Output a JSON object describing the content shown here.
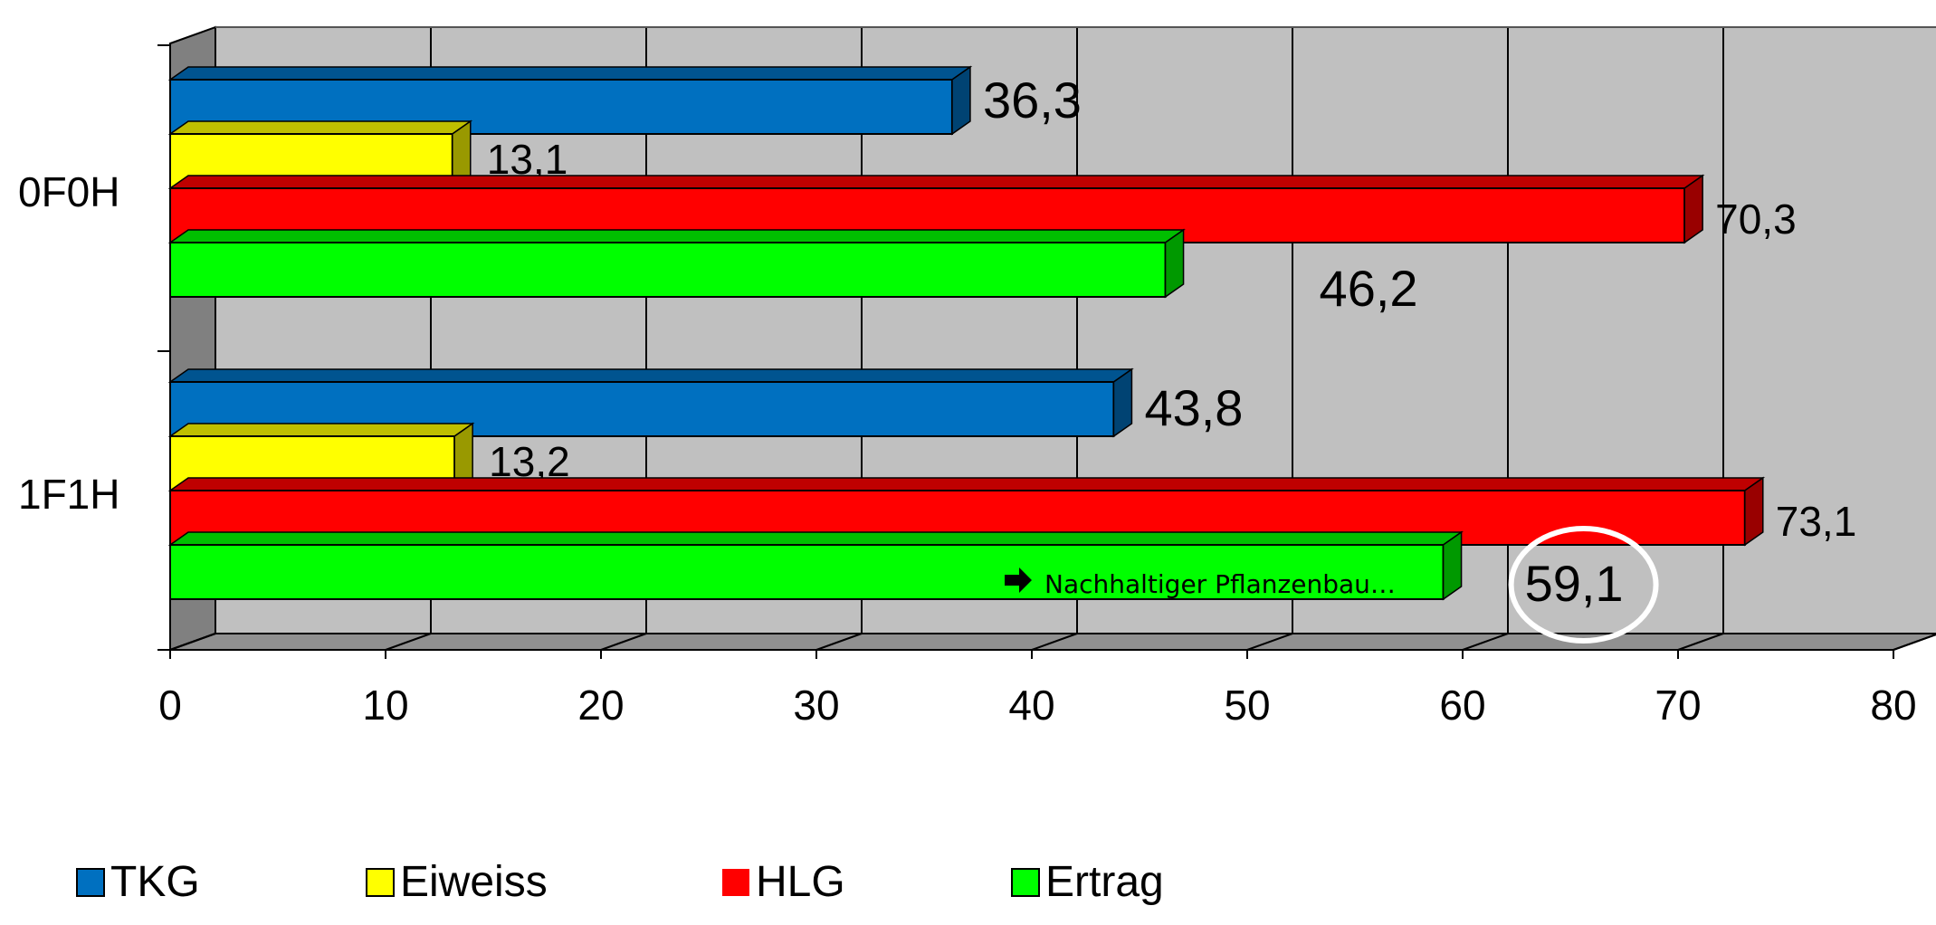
{
  "chart_data": {
    "type": "bar",
    "orientation": "horizontal",
    "style": "3d",
    "categories": [
      "0F0H",
      "1F1H"
    ],
    "series": [
      {
        "name": "TKG",
        "color": "#0070C0",
        "values": [
          36.3,
          43.8
        ],
        "labels": [
          "36,3",
          "43,8"
        ]
      },
      {
        "name": "Eiweiss",
        "color": "#FFFF00",
        "values": [
          13.1,
          13.2
        ],
        "labels": [
          "13,1",
          "13,2"
        ]
      },
      {
        "name": "HLG",
        "color": "#FF0000",
        "values": [
          70.3,
          73.1
        ],
        "labels": [
          "70,3",
          "73,1"
        ]
      },
      {
        "name": "Ertrag",
        "color": "#00FF00",
        "values": [
          46.2,
          59.1
        ],
        "labels": [
          "46,2",
          "59,1"
        ]
      }
    ],
    "xlim": [
      0,
      80
    ],
    "xticks": [
      "0",
      "10",
      "20",
      "30",
      "40",
      "50",
      "60",
      "70",
      "80"
    ],
    "grid": true,
    "legend_position": "bottom",
    "annotation": {
      "text": "Nachhaltiger Pflanzenbau…",
      "icon": "arrow-right-icon"
    },
    "highlight": {
      "label": "59,1",
      "shape": "circle",
      "color": "#FFFFFF"
    }
  }
}
